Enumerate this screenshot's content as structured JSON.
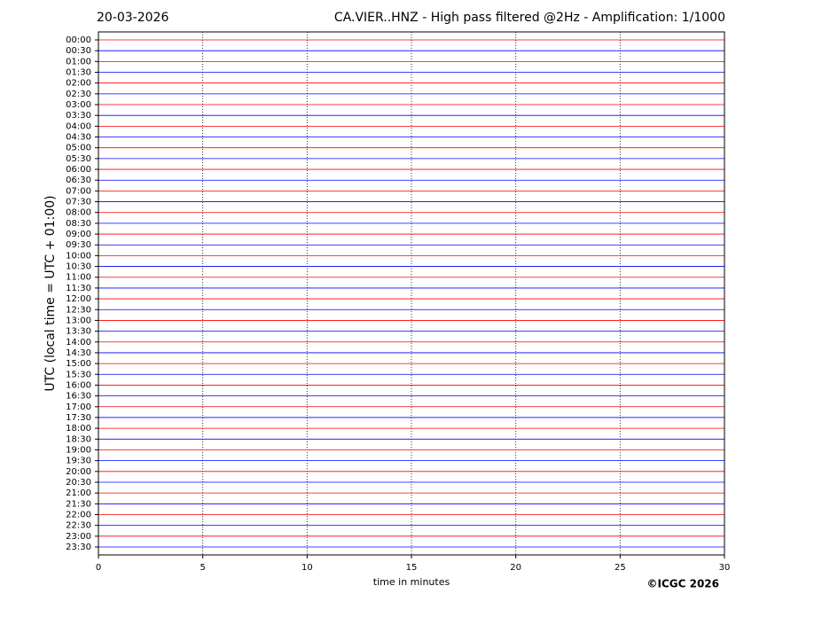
{
  "chart_data": {
    "type": "helicorder",
    "date": "20-03-2026",
    "title": "CA.VIER..HNZ - High pass filtered @2Hz - Amplification: 1/1000",
    "x_label": "time in minutes",
    "y_label": "UTC (local time = UTC + 01:00)",
    "copyright": "©ICGC 2026",
    "xlim": [
      0,
      30
    ],
    "xticks": [
      0,
      5,
      10,
      15,
      20,
      25,
      30
    ],
    "grid": true,
    "trace_colors": [
      "#ff0000",
      "#0000ff"
    ],
    "categories": [
      "00:00",
      "00:30",
      "01:00",
      "01:30",
      "02:00",
      "02:30",
      "03:00",
      "03:30",
      "04:00",
      "04:30",
      "05:00",
      "05:30",
      "06:00",
      "06:30",
      "07:00",
      "07:30",
      "08:00",
      "08:30",
      "09:00",
      "09:30",
      "10:00",
      "10:30",
      "11:00",
      "11:30",
      "12:00",
      "12:30",
      "13:00",
      "13:30",
      "14:00",
      "14:30",
      "15:00",
      "15:30",
      "16:00",
      "16:30",
      "17:00",
      "17:30",
      "18:00",
      "18:30",
      "19:00",
      "19:30",
      "20:00",
      "20:30",
      "21:00",
      "21:30",
      "22:00",
      "22:30",
      "23:00",
      "23:30"
    ]
  }
}
